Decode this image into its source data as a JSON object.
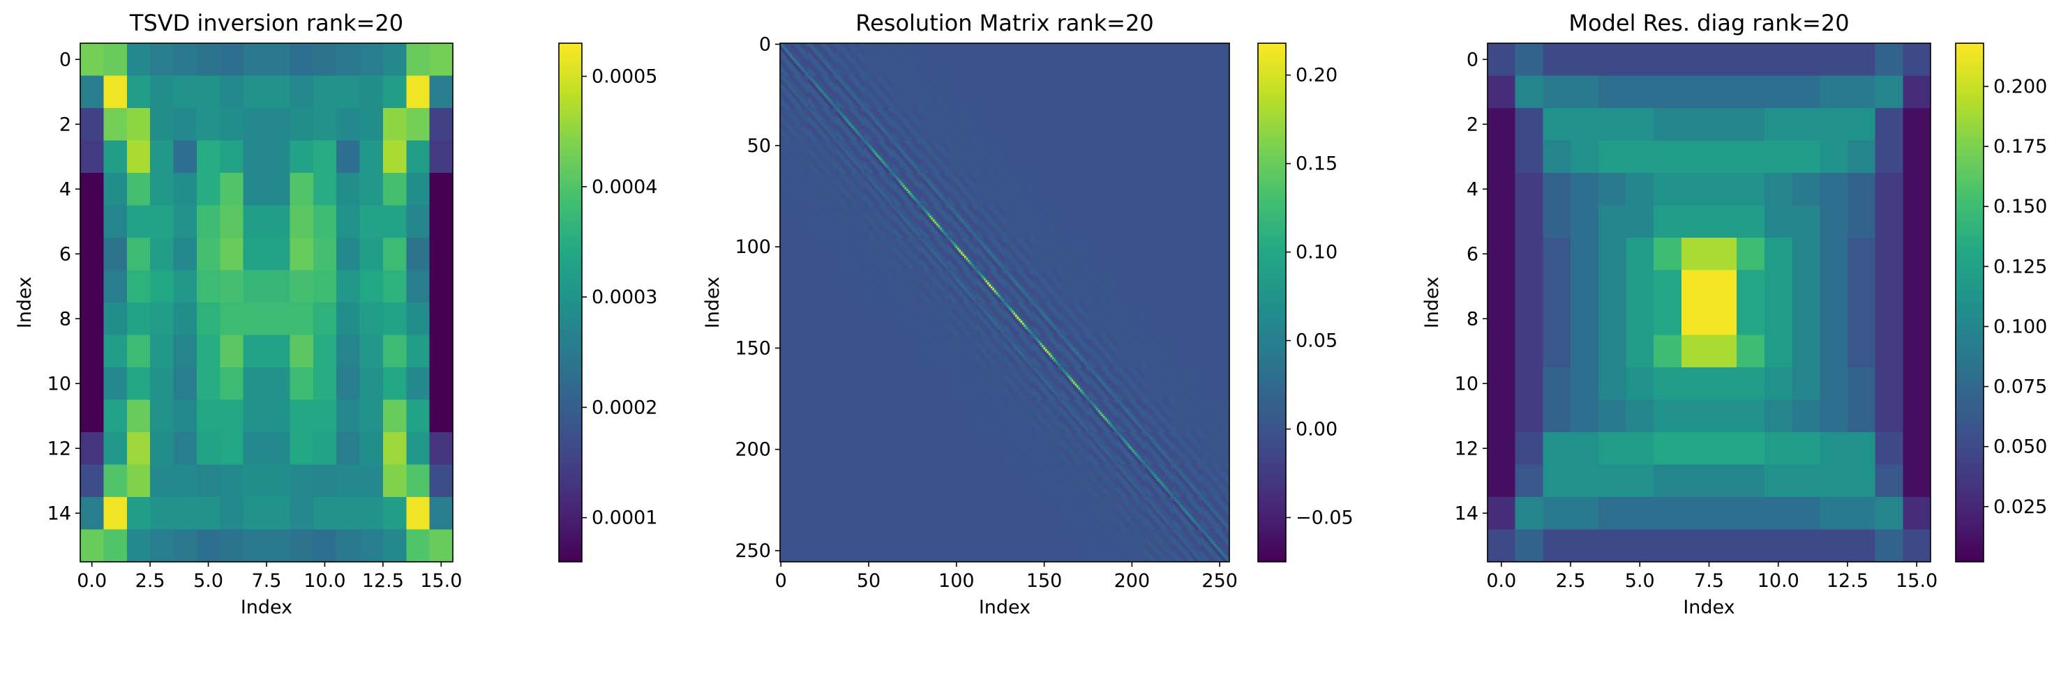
{
  "colormap": "viridis",
  "chart_data": [
    {
      "type": "heatmap",
      "title": "TSVD inversion rank=20",
      "xlabel": "Index",
      "ylabel": "Index",
      "shape": [
        16,
        16
      ],
      "xlim": [
        -0.5,
        15.5
      ],
      "ylim": [
        15.5,
        -0.5
      ],
      "x_ticks": [
        0.0,
        2.5,
        5.0,
        7.5,
        10.0,
        12.5,
        15.0
      ],
      "x_tick_labels": [
        "0.0",
        "2.5",
        "5.0",
        "7.5",
        "10.0",
        "12.5",
        "15.0"
      ],
      "y_ticks": [
        0,
        2,
        4,
        6,
        8,
        10,
        12,
        14
      ],
      "y_tick_labels": [
        "0",
        "2",
        "4",
        "6",
        "8",
        "10",
        "12",
        "14"
      ],
      "colorbar": {
        "vmin": 6e-05,
        "vmax": 0.00053,
        "ticks": [
          0.0001,
          0.0002,
          0.0003,
          0.0004,
          0.0005
        ],
        "tick_labels": [
          "0.0001",
          "0.0002",
          "0.0003",
          "0.0004",
          "0.0005"
        ]
      },
      "matrix": [
        [
          0.00043,
          0.00042,
          0.00028,
          0.00026,
          0.00025,
          0.00024,
          0.00023,
          0.00025,
          0.00025,
          0.00023,
          0.00024,
          0.00025,
          0.00026,
          0.00028,
          0.00042,
          0.00043
        ],
        [
          0.00026,
          0.00052,
          0.00032,
          0.00029,
          0.0003,
          0.0003,
          0.00028,
          0.0003,
          0.0003,
          0.00028,
          0.0003,
          0.0003,
          0.00029,
          0.00032,
          0.00052,
          0.00026
        ],
        [
          0.00015,
          0.00043,
          0.00045,
          0.00029,
          0.00028,
          0.0003,
          0.00029,
          0.00028,
          0.00028,
          0.00029,
          0.0003,
          0.00028,
          0.00029,
          0.00045,
          0.00043,
          0.00015
        ],
        [
          0.00014,
          0.00032,
          0.00047,
          0.00031,
          0.00023,
          0.00035,
          0.00033,
          0.00028,
          0.00028,
          0.00033,
          0.00035,
          0.00023,
          0.00031,
          0.00047,
          0.00032,
          0.00014
        ],
        [
          6e-05,
          0.00029,
          0.00039,
          0.00031,
          0.00029,
          0.00035,
          0.0004,
          0.00028,
          0.00028,
          0.0004,
          0.00035,
          0.00029,
          0.00031,
          0.00039,
          0.00029,
          6e-05
        ],
        [
          6e-05,
          0.00027,
          0.00033,
          0.00033,
          0.0003,
          0.00038,
          0.00041,
          0.00032,
          0.00032,
          0.00041,
          0.00038,
          0.0003,
          0.00033,
          0.00033,
          0.00027,
          6e-05
        ],
        [
          6e-05,
          0.00024,
          0.00038,
          0.00032,
          0.00028,
          0.00039,
          0.00042,
          0.00033,
          0.00033,
          0.00042,
          0.00039,
          0.00028,
          0.00032,
          0.00038,
          0.00024,
          6e-05
        ],
        [
          6e-05,
          0.00026,
          0.00036,
          0.00034,
          0.00031,
          0.00038,
          0.00039,
          0.00037,
          0.00037,
          0.00039,
          0.00038,
          0.00031,
          0.00034,
          0.00036,
          0.00026,
          6e-05
        ],
        [
          6e-05,
          0.00029,
          0.00033,
          0.00032,
          0.00029,
          0.00036,
          0.00038,
          0.00038,
          0.00038,
          0.00038,
          0.00036,
          0.00029,
          0.00032,
          0.00033,
          0.00029,
          6e-05
        ],
        [
          6e-05,
          0.00032,
          0.00038,
          0.00031,
          0.00027,
          0.00035,
          0.00041,
          0.00033,
          0.00033,
          0.00041,
          0.00035,
          0.00027,
          0.00031,
          0.00038,
          0.00032,
          6e-05
        ],
        [
          6e-05,
          0.00028,
          0.00034,
          0.0003,
          0.00026,
          0.00035,
          0.00038,
          0.0003,
          0.0003,
          0.00038,
          0.00035,
          0.00026,
          0.0003,
          0.00034,
          0.00028,
          6e-05
        ],
        [
          6e-05,
          0.00033,
          0.00042,
          0.0003,
          0.00028,
          0.00034,
          0.00034,
          0.0003,
          0.0003,
          0.00034,
          0.00034,
          0.00028,
          0.0003,
          0.00042,
          0.00033,
          6e-05
        ],
        [
          0.00013,
          0.00031,
          0.00046,
          0.00029,
          0.00026,
          0.00033,
          0.00034,
          0.00028,
          0.00028,
          0.00034,
          0.00033,
          0.00026,
          0.00029,
          0.00046,
          0.00031,
          0.00013
        ],
        [
          0.00017,
          0.0004,
          0.00044,
          0.00028,
          0.00028,
          0.00027,
          0.00028,
          0.00029,
          0.00029,
          0.00028,
          0.00027,
          0.00028,
          0.00028,
          0.00044,
          0.0004,
          0.00017
        ],
        [
          0.00026,
          0.00052,
          0.00032,
          0.0003,
          0.0003,
          0.0003,
          0.00028,
          0.0003,
          0.0003,
          0.00028,
          0.0003,
          0.0003,
          0.0003,
          0.00032,
          0.00052,
          0.00026
        ],
        [
          0.00042,
          0.0004,
          0.00028,
          0.00026,
          0.00025,
          0.00023,
          0.00024,
          0.00025,
          0.00025,
          0.00024,
          0.00023,
          0.00025,
          0.00026,
          0.00028,
          0.0004,
          0.00042
        ]
      ]
    },
    {
      "type": "heatmap",
      "title": "Resolution Matrix rank=20",
      "xlabel": "Index",
      "ylabel": "Index",
      "shape": [
        256,
        256
      ],
      "xlim": [
        -0.5,
        255.5
      ],
      "ylim": [
        255.5,
        -0.5
      ],
      "x_ticks": [
        0,
        50,
        100,
        150,
        200,
        250
      ],
      "x_tick_labels": [
        "0",
        "50",
        "100",
        "150",
        "200",
        "250"
      ],
      "y_ticks": [
        0,
        50,
        100,
        150,
        200,
        250
      ],
      "y_tick_labels": [
        "0",
        "50",
        "100",
        "150",
        "200",
        "250"
      ],
      "colorbar": {
        "vmin": -0.075,
        "vmax": 0.218,
        "ticks": [
          -0.05,
          0.0,
          0.05,
          0.1,
          0.15,
          0.2
        ],
        "tick_labels": [
          "−0.05",
          "0.00",
          "0.05",
          "0.10",
          "0.15",
          "0.20"
        ]
      }
    },
    {
      "type": "heatmap",
      "title": "Model Res. diag rank=20",
      "xlabel": "Index",
      "ylabel": "Index",
      "shape": [
        16,
        16
      ],
      "xlim": [
        -0.5,
        15.5
      ],
      "ylim": [
        15.5,
        -0.5
      ],
      "x_ticks": [
        0.0,
        2.5,
        5.0,
        7.5,
        10.0,
        12.5,
        15.0
      ],
      "x_tick_labels": [
        "0.0",
        "2.5",
        "5.0",
        "7.5",
        "10.0",
        "12.5",
        "15.0"
      ],
      "y_ticks": [
        0,
        2,
        4,
        6,
        8,
        10,
        12,
        14
      ],
      "y_tick_labels": [
        "0",
        "2",
        "4",
        "6",
        "8",
        "10",
        "12",
        "14"
      ],
      "colorbar": {
        "vmin": 0.002,
        "vmax": 0.218,
        "ticks": [
          0.025,
          0.05,
          0.075,
          0.1,
          0.125,
          0.15,
          0.175,
          0.2
        ],
        "tick_labels": [
          "0.025",
          "0.050",
          "0.075",
          "0.100",
          "0.125",
          "0.150",
          "0.175",
          "0.200"
        ]
      },
      "matrix": [
        [
          0.05,
          0.07,
          0.05,
          0.05,
          0.05,
          0.05,
          0.05,
          0.05,
          0.05,
          0.05,
          0.05,
          0.05,
          0.05,
          0.05,
          0.07,
          0.05
        ],
        [
          0.03,
          0.1,
          0.09,
          0.09,
          0.08,
          0.08,
          0.08,
          0.08,
          0.08,
          0.08,
          0.08,
          0.08,
          0.09,
          0.09,
          0.1,
          0.03
        ],
        [
          0.01,
          0.05,
          0.11,
          0.11,
          0.11,
          0.11,
          0.1,
          0.1,
          0.1,
          0.1,
          0.11,
          0.11,
          0.11,
          0.11,
          0.05,
          0.01
        ],
        [
          0.01,
          0.05,
          0.1,
          0.11,
          0.12,
          0.12,
          0.12,
          0.12,
          0.12,
          0.12,
          0.12,
          0.12,
          0.11,
          0.1,
          0.05,
          0.01
        ],
        [
          0.01,
          0.04,
          0.07,
          0.08,
          0.09,
          0.1,
          0.11,
          0.11,
          0.11,
          0.11,
          0.1,
          0.09,
          0.08,
          0.07,
          0.04,
          0.01
        ],
        [
          0.01,
          0.04,
          0.07,
          0.08,
          0.1,
          0.1,
          0.12,
          0.12,
          0.12,
          0.12,
          0.1,
          0.1,
          0.08,
          0.07,
          0.04,
          0.01
        ],
        [
          0.01,
          0.04,
          0.06,
          0.08,
          0.1,
          0.12,
          0.15,
          0.19,
          0.19,
          0.15,
          0.12,
          0.1,
          0.08,
          0.06,
          0.04,
          0.01
        ],
        [
          0.01,
          0.04,
          0.06,
          0.08,
          0.1,
          0.12,
          0.13,
          0.215,
          0.215,
          0.13,
          0.12,
          0.1,
          0.08,
          0.06,
          0.04,
          0.01
        ],
        [
          0.01,
          0.04,
          0.06,
          0.08,
          0.1,
          0.12,
          0.13,
          0.215,
          0.215,
          0.13,
          0.12,
          0.1,
          0.08,
          0.06,
          0.04,
          0.01
        ],
        [
          0.01,
          0.04,
          0.06,
          0.08,
          0.1,
          0.12,
          0.15,
          0.19,
          0.19,
          0.15,
          0.12,
          0.1,
          0.08,
          0.06,
          0.04,
          0.01
        ],
        [
          0.01,
          0.04,
          0.07,
          0.08,
          0.1,
          0.11,
          0.12,
          0.12,
          0.12,
          0.12,
          0.11,
          0.1,
          0.08,
          0.07,
          0.04,
          0.01
        ],
        [
          0.01,
          0.04,
          0.07,
          0.08,
          0.09,
          0.1,
          0.11,
          0.11,
          0.11,
          0.11,
          0.1,
          0.09,
          0.08,
          0.07,
          0.04,
          0.01
        ],
        [
          0.01,
          0.05,
          0.11,
          0.11,
          0.12,
          0.12,
          0.13,
          0.13,
          0.13,
          0.13,
          0.12,
          0.12,
          0.11,
          0.11,
          0.05,
          0.01
        ],
        [
          0.01,
          0.06,
          0.11,
          0.11,
          0.11,
          0.11,
          0.1,
          0.1,
          0.1,
          0.1,
          0.11,
          0.11,
          0.11,
          0.11,
          0.06,
          0.01
        ],
        [
          0.03,
          0.1,
          0.09,
          0.09,
          0.08,
          0.08,
          0.08,
          0.08,
          0.08,
          0.08,
          0.08,
          0.08,
          0.09,
          0.09,
          0.1,
          0.03
        ],
        [
          0.05,
          0.07,
          0.05,
          0.05,
          0.05,
          0.05,
          0.05,
          0.05,
          0.05,
          0.05,
          0.05,
          0.05,
          0.05,
          0.05,
          0.07,
          0.05
        ]
      ]
    }
  ]
}
